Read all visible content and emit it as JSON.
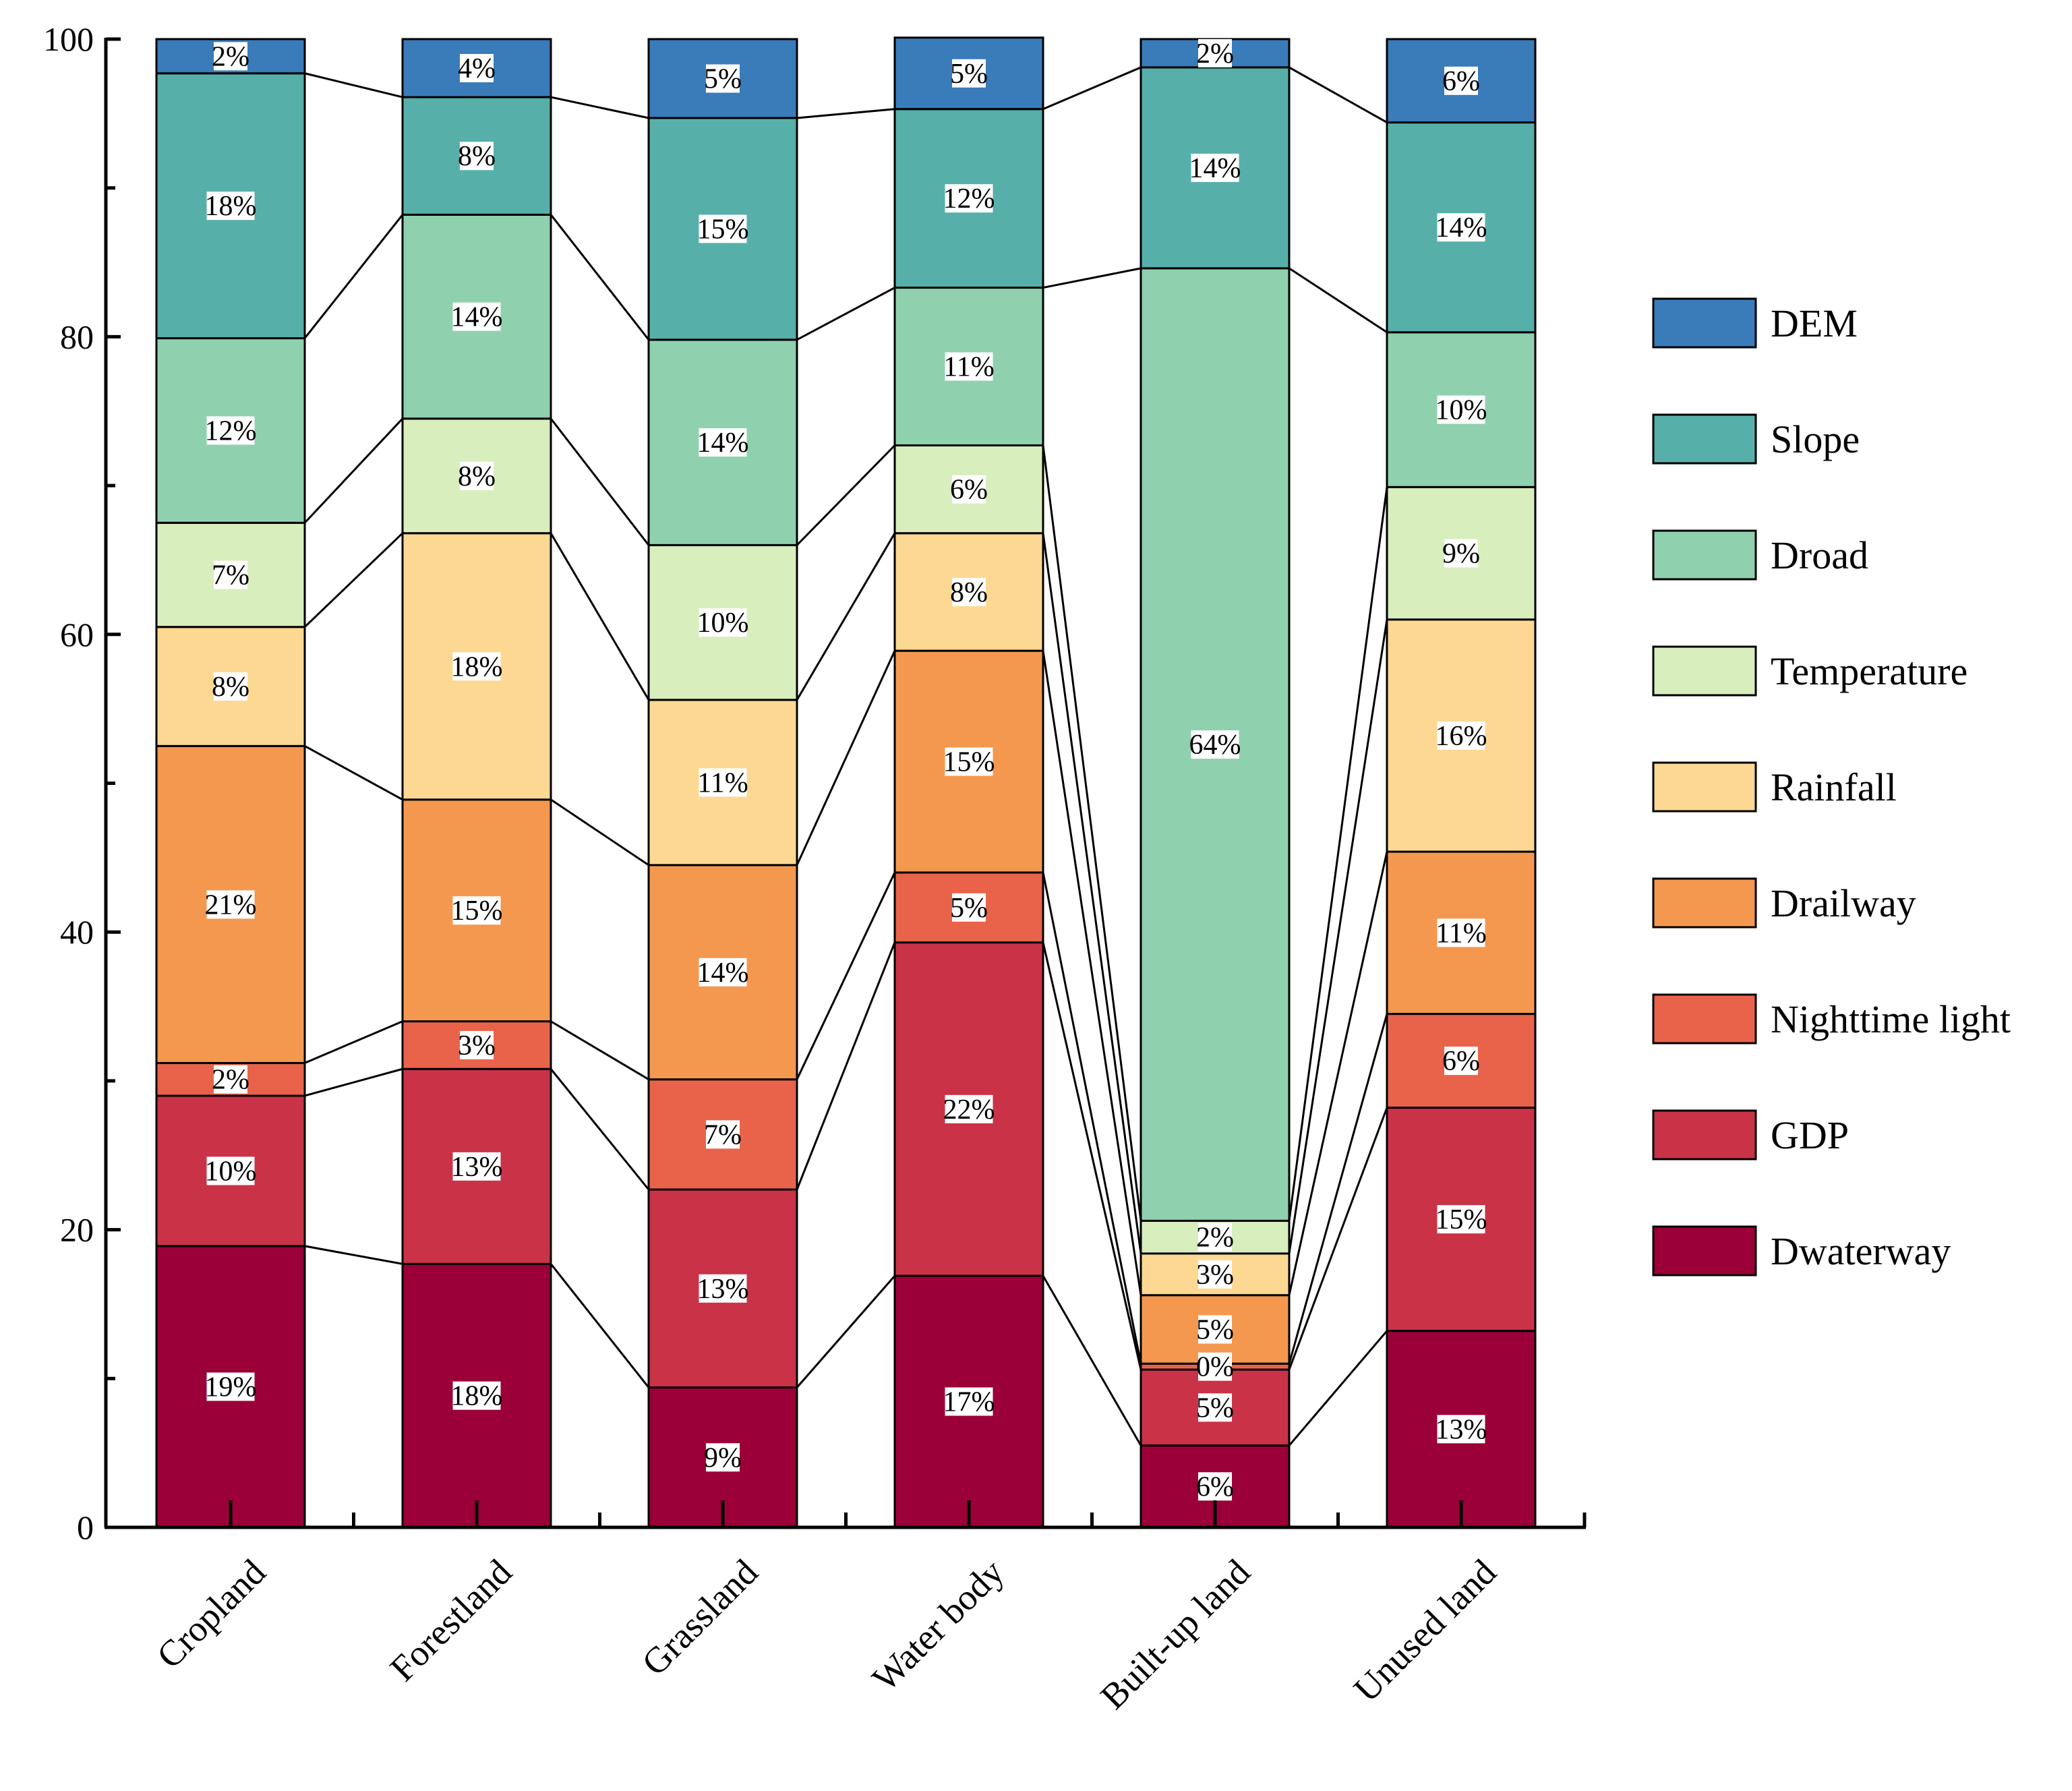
{
  "chart_data": {
    "type": "bar",
    "stacked": true,
    "categories": [
      "Cropland",
      "Forestland",
      "Grassland",
      "Water body",
      "Built-up land",
      "Unused land"
    ],
    "ylim": [
      0,
      100
    ],
    "yticks": [
      0,
      20,
      40,
      60,
      80,
      100
    ],
    "yticks_label": [
      "0",
      "20",
      "40",
      "60",
      "80",
      "100"
    ],
    "series": [
      {
        "name": "Dwaterway",
        "color": "#9b0039",
        "values": [
          18.9,
          17.7,
          9.4,
          16.9,
          5.5,
          13.2
        ],
        "labels": [
          "19%",
          "18%",
          "9%",
          "17%",
          "6%",
          "13%"
        ]
      },
      {
        "name": "GDP",
        "color": "#ca3248",
        "values": [
          10.1,
          13.1,
          13.3,
          22.4,
          5.1,
          15.0
        ],
        "labels": [
          "10%",
          "13%",
          "13%",
          "22%",
          "5%",
          "15%"
        ]
      },
      {
        "name": "Nighttime light",
        "color": "#e9634b",
        "values": [
          2.2,
          3.2,
          7.4,
          4.7,
          0.4,
          6.3
        ],
        "labels": [
          "2%",
          "3%",
          "7%",
          "5%",
          "0%",
          "6%"
        ]
      },
      {
        "name": "Drailway",
        "color": "#f5984f",
        "values": [
          21.3,
          14.9,
          14.4,
          14.9,
          4.6,
          10.9
        ],
        "labels": [
          "21%",
          "15%",
          "14%",
          "15%",
          "5%",
          "11%"
        ]
      },
      {
        "name": "Rainfall",
        "color": "#fdd893",
        "values": [
          8.0,
          17.9,
          11.1,
          7.9,
          2.8,
          15.6
        ],
        "labels": [
          "8%",
          "18%",
          "11%",
          "8%",
          "3%",
          "16%"
        ]
      },
      {
        "name": "Temperature",
        "color": "#d8eebd",
        "values": [
          7.0,
          7.7,
          10.4,
          5.9,
          2.2,
          8.9
        ],
        "labels": [
          "7%",
          "8%",
          "10%",
          "6%",
          "2%",
          "9%"
        ]
      },
      {
        "name": "Droad",
        "color": "#8fd1af",
        "values": [
          12.4,
          13.7,
          13.8,
          10.6,
          64.0,
          10.4
        ],
        "labels": [
          "12%",
          "14%",
          "14%",
          "11%",
          "64%",
          "10%"
        ]
      },
      {
        "name": "Slope",
        "color": "#56b0a9",
        "values": [
          17.8,
          7.9,
          14.9,
          12.0,
          13.5,
          14.1
        ],
        "labels": [
          "18%",
          "8%",
          "15%",
          "12%",
          "14%",
          "14%"
        ]
      },
      {
        "name": "DEM",
        "color": "#3a7bba",
        "values": [
          2.3,
          3.9,
          5.3,
          4.8,
          1.9,
          5.6
        ],
        "labels": [
          "2%",
          "4%",
          "5%",
          "5%",
          "2%",
          "6%"
        ]
      }
    ],
    "legend_order": [
      "DEM",
      "Slope",
      "Droad",
      "Temperature",
      "Rainfall",
      "Drailway",
      "Nighttime light",
      "GDP",
      "Dwaterway"
    ],
    "legend_position": "right",
    "connector_lines": true,
    "xlabel": "",
    "ylabel": "",
    "title": ""
  }
}
